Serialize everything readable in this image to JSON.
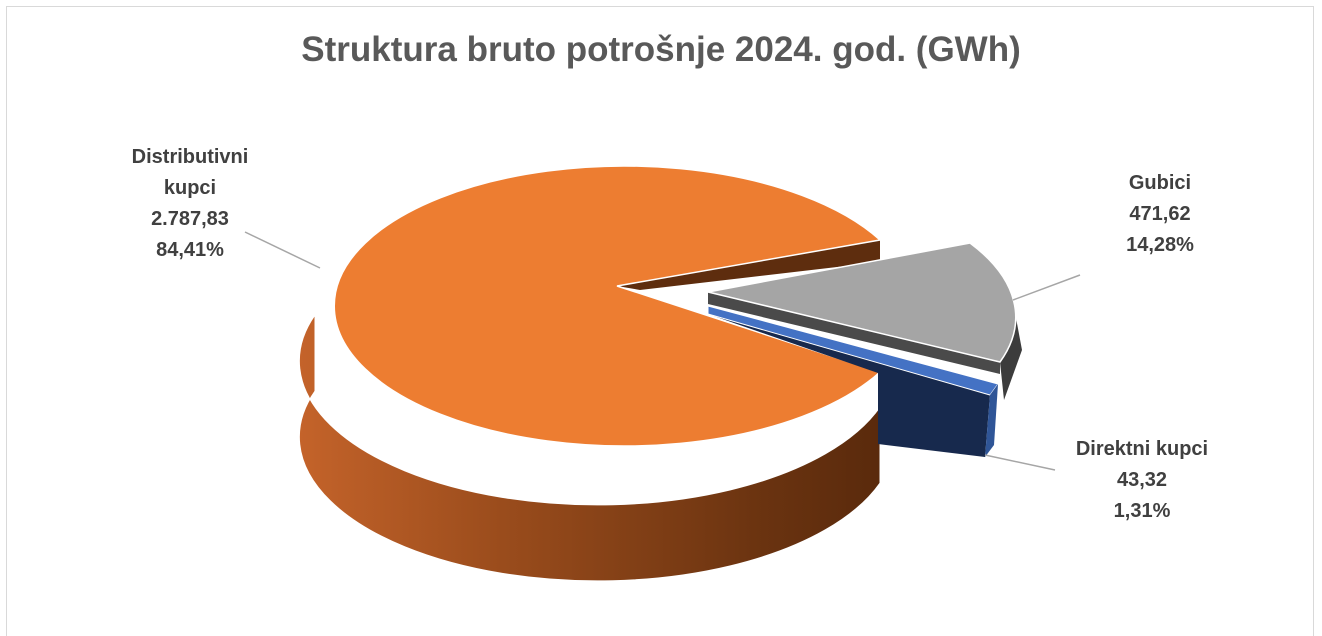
{
  "chart_data": {
    "type": "pie",
    "title": "Struktura bruto potrošnje 2024. god. (GWh)",
    "slices": [
      {
        "name": "Distributivni kupci",
        "name_lines": [
          "Distributivni",
          "kupci"
        ],
        "value": 2787.83,
        "value_label": "2.787,83",
        "percent": 84.41,
        "percent_label": "84,41%",
        "color": "#ED7D31",
        "side_color": "#7A3A0E"
      },
      {
        "name": "Gubici",
        "name_lines": [
          "Gubici"
        ],
        "value": 471.62,
        "value_label": "471,62",
        "percent": 14.28,
        "percent_label": "14,28%",
        "color": "#A5A5A5",
        "side_color": "#3A3A3A"
      },
      {
        "name": "Direktni kupci",
        "name_lines": [
          "Direktni kupci"
        ],
        "value": 43.32,
        "value_label": "43,32",
        "percent": 1.31,
        "percent_label": "1,31%",
        "color": "#4472C4",
        "side_color": "#1A2C4E"
      }
    ],
    "legend": "none",
    "style": "3d-exploded"
  }
}
